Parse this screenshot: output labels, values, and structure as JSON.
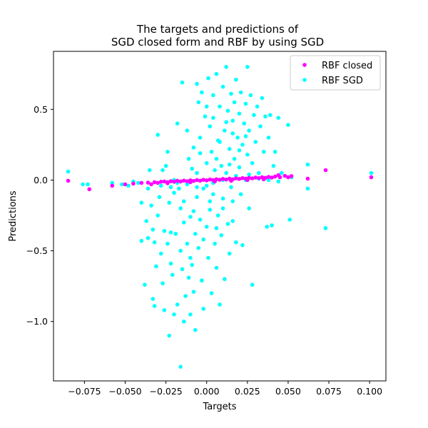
{
  "chart_data": {
    "type": "scatter",
    "title_lines": [
      "The targets and predictions of",
      "SGD closed form and RBF by using SGD"
    ],
    "xlabel": "Targets",
    "ylabel": "Predictions",
    "xlim": [
      -0.094,
      0.11
    ],
    "ylim": [
      -1.42,
      0.91
    ],
    "xticks": [
      -0.075,
      -0.05,
      -0.025,
      0.0,
      0.025,
      0.05,
      0.075,
      0.1
    ],
    "xtick_labels": [
      "−0.075",
      "−0.050",
      "−0.025",
      "0.000",
      "0.025",
      "0.050",
      "0.075",
      "0.100"
    ],
    "yticks": [
      -1.0,
      -0.5,
      0.0,
      0.5
    ],
    "ytick_labels": [
      "−1.0",
      "−0.5",
      "0.0",
      "0.5"
    ],
    "grid": false,
    "legend_position": "top-right",
    "series": [
      {
        "name": "RBF closed",
        "color": "#ff00ff",
        "points": [
          [
            -0.085,
            -0.005
          ],
          [
            -0.072,
            -0.065
          ],
          [
            -0.058,
            -0.04
          ],
          [
            -0.05,
            -0.03
          ],
          [
            -0.045,
            -0.025
          ],
          [
            -0.04,
            -0.02
          ],
          [
            -0.036,
            -0.018
          ],
          [
            -0.032,
            -0.015
          ],
          [
            -0.03,
            -0.02
          ],
          [
            -0.028,
            -0.012
          ],
          [
            -0.026,
            -0.01
          ],
          [
            -0.024,
            -0.015
          ],
          [
            -0.022,
            -0.008
          ],
          [
            -0.02,
            -0.012
          ],
          [
            -0.018,
            -0.005
          ],
          [
            -0.016,
            -0.01
          ],
          [
            -0.014,
            -0.004
          ],
          [
            -0.012,
            -0.008
          ],
          [
            -0.01,
            -0.002
          ],
          [
            -0.008,
            -0.006
          ],
          [
            -0.006,
            0.0
          ],
          [
            -0.004,
            -0.004
          ],
          [
            -0.002,
            0.002
          ],
          [
            0.0,
            -0.002
          ],
          [
            0.002,
            0.004
          ],
          [
            0.004,
            0.0
          ],
          [
            0.006,
            0.006
          ],
          [
            0.008,
            0.002
          ],
          [
            0.01,
            0.008
          ],
          [
            0.012,
            0.004
          ],
          [
            0.014,
            0.01
          ],
          [
            0.016,
            0.005
          ],
          [
            0.018,
            0.012
          ],
          [
            0.02,
            0.008
          ],
          [
            0.022,
            0.014
          ],
          [
            0.024,
            0.01
          ],
          [
            0.026,
            0.016
          ],
          [
            0.028,
            0.012
          ],
          [
            0.03,
            0.018
          ],
          [
            0.032,
            0.014
          ],
          [
            0.034,
            0.02
          ],
          [
            0.036,
            0.016
          ],
          [
            0.038,
            0.022
          ],
          [
            0.04,
            0.018
          ],
          [
            0.042,
            0.025
          ],
          [
            0.045,
            0.02
          ],
          [
            0.048,
            0.03
          ],
          [
            0.05,
            0.02
          ],
          [
            0.052,
            0.028
          ],
          [
            0.062,
            0.01
          ],
          [
            0.073,
            0.07
          ],
          [
            0.101,
            0.02
          ],
          [
            -0.024,
            -0.022
          ],
          [
            -0.01,
            -0.015
          ],
          [
            0.005,
            -0.01
          ],
          [
            0.015,
            -0.005
          ],
          [
            0.025,
            0.0
          ],
          [
            0.035,
            0.005
          ],
          [
            -0.034,
            -0.03
          ],
          [
            0.044,
            0.035
          ]
        ]
      },
      {
        "name": "RBF SGD",
        "color": "#00ffff",
        "points": [
          [
            -0.085,
            0.06
          ],
          [
            -0.076,
            -0.03
          ],
          [
            -0.073,
            -0.03
          ],
          [
            -0.058,
            -0.02
          ],
          [
            -0.052,
            -0.03
          ],
          [
            -0.048,
            -0.04
          ],
          [
            -0.045,
            -0.01
          ],
          [
            -0.042,
            -0.02
          ],
          [
            -0.04,
            -0.43
          ],
          [
            -0.04,
            -0.16
          ],
          [
            -0.038,
            -0.74
          ],
          [
            -0.037,
            -0.29
          ],
          [
            -0.036,
            -0.41
          ],
          [
            -0.035,
            0.07
          ],
          [
            -0.034,
            -0.18
          ],
          [
            -0.033,
            -0.35
          ],
          [
            -0.033,
            -0.84
          ],
          [
            -0.032,
            -0.89
          ],
          [
            -0.032,
            -0.44
          ],
          [
            -0.031,
            -0.61
          ],
          [
            -0.03,
            0.32
          ],
          [
            -0.03,
            -0.25
          ],
          [
            -0.029,
            -0.12
          ],
          [
            -0.028,
            -0.52
          ],
          [
            -0.027,
            -0.73
          ],
          [
            -0.027,
            0.07
          ],
          [
            -0.026,
            -0.36
          ],
          [
            -0.026,
            -0.92
          ],
          [
            -0.025,
            0.1
          ],
          [
            -0.024,
            0.2
          ],
          [
            -0.024,
            -0.45
          ],
          [
            -0.023,
            -1.1
          ],
          [
            -0.023,
            -0.16
          ],
          [
            -0.022,
            -0.59
          ],
          [
            -0.022,
            -0.37
          ],
          [
            -0.021,
            -0.67
          ],
          [
            -0.02,
            0.0
          ],
          [
            -0.02,
            -0.95
          ],
          [
            -0.019,
            -0.38
          ],
          [
            -0.018,
            0.4
          ],
          [
            -0.018,
            -0.88
          ],
          [
            -0.017,
            -0.06
          ],
          [
            -0.016,
            -1.32
          ],
          [
            -0.016,
            -0.5
          ],
          [
            -0.015,
            -0.63
          ],
          [
            -0.015,
            0.69
          ],
          [
            -0.014,
            -1.0
          ],
          [
            -0.014,
            -0.15
          ],
          [
            -0.013,
            -0.82
          ],
          [
            -0.012,
            0.35
          ],
          [
            -0.012,
            -0.45
          ],
          [
            -0.011,
            -0.69
          ],
          [
            -0.011,
            0.15
          ],
          [
            -0.01,
            -0.95
          ],
          [
            -0.01,
            -0.26
          ],
          [
            -0.009,
            0.08
          ],
          [
            -0.009,
            -0.6
          ],
          [
            -0.008,
            0.23
          ],
          [
            -0.008,
            -0.79
          ],
          [
            -0.007,
            -1.06
          ],
          [
            -0.007,
            -0.38
          ],
          [
            -0.006,
            0.68
          ],
          [
            -0.006,
            -0.12
          ],
          [
            -0.005,
            0.55
          ],
          [
            -0.005,
            -0.48
          ],
          [
            -0.004,
            -0.28
          ],
          [
            -0.004,
            0.3
          ],
          [
            -0.003,
            -0.71
          ],
          [
            -0.003,
            0.62
          ],
          [
            -0.002,
            -0.06
          ],
          [
            -0.002,
            -0.91
          ],
          [
            -0.001,
            0.45
          ],
          [
            0.0,
            -0.33
          ],
          [
            0.0,
            0.12
          ],
          [
            0.001,
            0.72
          ],
          [
            0.001,
            -0.55
          ],
          [
            0.002,
            -0.21
          ],
          [
            0.002,
            0.38
          ],
          [
            0.003,
            -0.8
          ],
          [
            0.003,
            0.2
          ],
          [
            0.004,
            -0.1
          ],
          [
            0.004,
            0.6
          ],
          [
            0.005,
            -0.45
          ],
          [
            0.005,
            0.07
          ],
          [
            0.006,
            0.75
          ],
          [
            0.006,
            -0.62
          ],
          [
            0.007,
            0.28
          ],
          [
            0.007,
            -0.25
          ],
          [
            0.008,
            0.52
          ],
          [
            0.008,
            -0.88
          ],
          [
            0.009,
            0.1
          ],
          [
            0.009,
            -0.39
          ],
          [
            0.01,
            0.66
          ],
          [
            0.01,
            -0.13
          ],
          [
            0.011,
            0.35
          ],
          [
            0.011,
            -0.7
          ],
          [
            0.012,
            0.8
          ],
          [
            0.012,
            0.05
          ],
          [
            0.013,
            -0.31
          ],
          [
            0.013,
            0.49
          ],
          [
            0.014,
            -0.52
          ],
          [
            0.014,
            0.22
          ],
          [
            0.015,
            0.61
          ],
          [
            0.015,
            -0.05
          ],
          [
            0.016,
            0.42
          ],
          [
            0.016,
            -0.29
          ],
          [
            0.017,
            0.15
          ],
          [
            0.017,
            0.55
          ],
          [
            0.018,
            -0.44
          ],
          [
            0.018,
            0.71
          ],
          [
            0.019,
            0.3
          ],
          [
            0.02,
            0.09
          ],
          [
            0.02,
            0.47
          ],
          [
            0.021,
            -0.1
          ],
          [
            0.021,
            0.62
          ],
          [
            0.022,
            0.25
          ],
          [
            0.022,
            -0.46
          ],
          [
            0.023,
            0.4
          ],
          [
            0.024,
            0.0
          ],
          [
            0.024,
            0.54
          ],
          [
            0.025,
            0.8
          ],
          [
            0.025,
            0.18
          ],
          [
            0.026,
            0.35
          ],
          [
            0.026,
            -0.2
          ],
          [
            0.027,
            0.6
          ],
          [
            0.028,
            0.12
          ],
          [
            0.028,
            -0.74
          ],
          [
            0.029,
            0.46
          ],
          [
            0.03,
            0.27
          ],
          [
            0.031,
            0.52
          ],
          [
            0.032,
            0.05
          ],
          [
            0.033,
            0.38
          ],
          [
            0.034,
            0.58
          ],
          [
            0.035,
            0.2
          ],
          [
            0.036,
            0.45
          ],
          [
            0.037,
            -0.33
          ],
          [
            0.038,
            0.3
          ],
          [
            0.039,
            0.46
          ],
          [
            0.04,
            -0.32
          ],
          [
            0.041,
            0.1
          ],
          [
            0.042,
            0.2
          ],
          [
            0.044,
            0.44
          ],
          [
            0.046,
            0.05
          ],
          [
            0.05,
            0.39
          ],
          [
            0.051,
            -0.28
          ],
          [
            0.052,
            0.02
          ],
          [
            0.062,
            0.11
          ],
          [
            0.062,
            -0.06
          ],
          [
            0.073,
            -0.34
          ],
          [
            0.101,
            0.05
          ],
          [
            -0.028,
            -0.04
          ],
          [
            -0.022,
            -0.05
          ],
          [
            -0.018,
            -0.02
          ],
          [
            -0.012,
            -0.03
          ],
          [
            -0.006,
            -0.05
          ],
          [
            0.0,
            -0.04
          ],
          [
            0.004,
            -0.02
          ],
          [
            0.01,
            0.0
          ],
          [
            0.018,
            0.03
          ],
          [
            0.026,
            0.04
          ],
          [
            0.032,
            0.01
          ],
          [
            0.038,
            0.0
          ],
          [
            0.044,
            -0.01
          ],
          [
            -0.036,
            -0.06
          ],
          [
            -0.02,
            -0.09
          ],
          [
            0.008,
            0.27
          ],
          [
            0.012,
            0.41
          ],
          [
            0.016,
            0.33
          ],
          [
            0.004,
            0.44
          ],
          [
            0.0,
            0.52
          ],
          [
            -0.004,
            0.19
          ],
          [
            0.02,
            0.21
          ],
          [
            0.024,
            0.31
          ],
          [
            0.014,
            0.11
          ],
          [
            0.006,
            0.15
          ],
          [
            -0.008,
            -0.22
          ],
          [
            -0.014,
            -0.3
          ],
          [
            0.002,
            -0.15
          ],
          [
            0.006,
            -0.34
          ],
          [
            0.01,
            -0.2
          ],
          [
            -0.002,
            -0.42
          ],
          [
            -0.01,
            -0.55
          ],
          [
            0.016,
            -0.15
          ],
          [
            -0.016,
            -0.2
          ],
          [
            -0.006,
            0.05
          ]
        ]
      }
    ]
  }
}
